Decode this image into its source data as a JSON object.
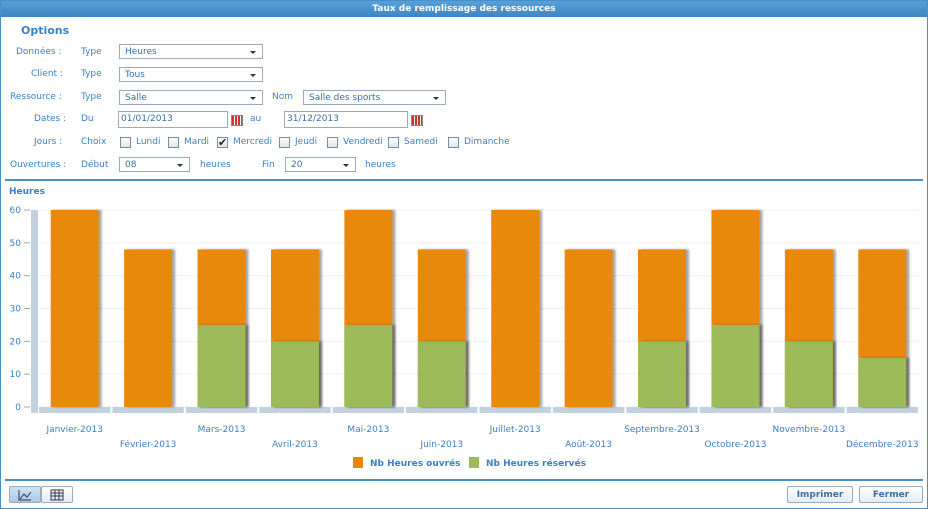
{
  "window": {
    "title": "Taux de remplissage des ressources"
  },
  "form": {
    "title": "Options",
    "donnees": {
      "label": "Données :",
      "field": "Type",
      "value": "Heures"
    },
    "client": {
      "label": "Client :",
      "field": "Type",
      "value": "Tous"
    },
    "ressource": {
      "label": "Ressource :",
      "field": "Type",
      "value": "Salle",
      "name_field": "Nom",
      "name_value": "Salle des sports"
    },
    "dates": {
      "label": "Dates :",
      "from_field": "Du",
      "from": "01/01/2013",
      "to_field": "au",
      "to": "31/12/2013"
    },
    "jours": {
      "label": "Jours :",
      "field": "Choix",
      "days": [
        {
          "label": "Lundi",
          "checked": false
        },
        {
          "label": "Mardi",
          "checked": false
        },
        {
          "label": "Mercredi",
          "checked": true
        },
        {
          "label": "Jeudi",
          "checked": false
        },
        {
          "label": "Vendredi",
          "checked": false
        },
        {
          "label": "Samedi",
          "checked": false
        },
        {
          "label": "Dimanche",
          "checked": false
        }
      ]
    },
    "ouvertures": {
      "label": "Ouvertures :",
      "start_field": "Début",
      "start": "08",
      "start_unit": "heures",
      "end_field": "Fin",
      "end": "20",
      "end_unit": "heures"
    }
  },
  "chart_data": {
    "type": "bar",
    "y_label": "Heures",
    "categories": [
      "Janvier-2013",
      "Février-2013",
      "Mars-2013",
      "Avril-2013",
      "Mai-2013",
      "Juin-2013",
      "Juillet-2013",
      "Août-2013",
      "Septembre-2013",
      "Octobre-2013",
      "Novembre-2013",
      "Décembre-2013"
    ],
    "series": [
      {
        "name": "Nb Heures ouvrés",
        "color": "#e8890c",
        "values": [
          60,
          48,
          48,
          48,
          60,
          48,
          60,
          48,
          48,
          60,
          48,
          48
        ]
      },
      {
        "name": "Nb Heures réservés",
        "color": "#9cbb58",
        "values": [
          0,
          0,
          25,
          20,
          25,
          20,
          0,
          0,
          20,
          25,
          20,
          15
        ]
      }
    ],
    "ylim": [
      0,
      60
    ],
    "yticks": [
      0,
      10,
      20,
      30,
      40,
      50,
      60
    ],
    "grid": true
  },
  "buttons": {
    "print": "Imprimer",
    "close": "Fermer"
  }
}
